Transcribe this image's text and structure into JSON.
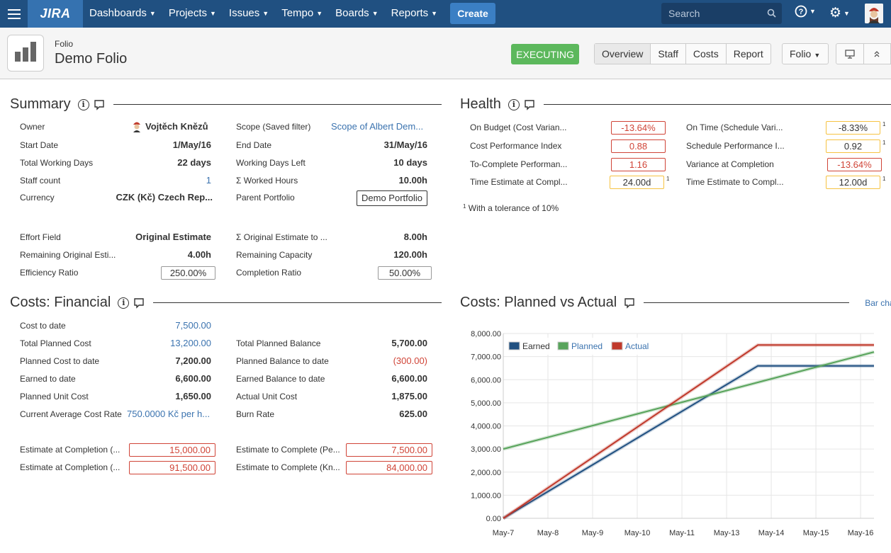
{
  "nav": {
    "logo": "JIRA",
    "menu": [
      "Dashboards",
      "Projects",
      "Issues",
      "Tempo",
      "Boards",
      "Reports"
    ],
    "create_label": "Create",
    "search_placeholder": "Search"
  },
  "header": {
    "breadcrumb": "Folio",
    "title": "Demo Folio",
    "status": "EXECUTING",
    "tabs": [
      "Overview",
      "Staff",
      "Costs",
      "Report"
    ],
    "folio_dropdown": "Folio"
  },
  "summary": {
    "title": "Summary",
    "left": [
      {
        "label": "Owner",
        "value": "Vojtěch Knězů"
      },
      {
        "label": "Start Date",
        "value": "1/May/16"
      },
      {
        "label": "Total Working Days",
        "value": "22 days"
      },
      {
        "label": "Staff count",
        "value": "1"
      },
      {
        "label": "Currency",
        "value": "CZK (Kč) Czech Rep..."
      },
      {
        "label": "Effort Field",
        "value": "Original Estimate"
      },
      {
        "label": "Remaining Original Esti...",
        "value": "4.00h"
      },
      {
        "label": "Efficiency Ratio",
        "value": "250.00%"
      }
    ],
    "right": [
      {
        "label": "Scope (Saved filter)",
        "value": "Scope of Albert Dem..."
      },
      {
        "label": "End Date",
        "value": "31/May/16"
      },
      {
        "label": "Working Days Left",
        "value": "10 days"
      },
      {
        "label": "Σ Worked Hours",
        "value": "10.00h"
      },
      {
        "label": "Parent Portfolio",
        "value": "Demo Portfolio"
      },
      {
        "label": "Σ Original Estimate to ...",
        "value": "8.00h"
      },
      {
        "label": "Remaining Capacity",
        "value": "120.00h"
      },
      {
        "label": "Completion Ratio",
        "value": "50.00%"
      }
    ]
  },
  "health": {
    "title": "Health",
    "left": [
      {
        "label": "On Budget (Cost Varian...",
        "value": "-13.64%"
      },
      {
        "label": "Cost Performance Index",
        "value": "0.88"
      },
      {
        "label": "To-Complete Performan...",
        "value": "1.16"
      },
      {
        "label": "Time Estimate at Compl...",
        "value": "24.00d"
      }
    ],
    "right": [
      {
        "label": "On Time (Schedule Vari...",
        "value": "-8.33%"
      },
      {
        "label": "Schedule Performance I...",
        "value": "0.92"
      },
      {
        "label": "Variance at Completion",
        "value": "-13.64%"
      },
      {
        "label": "Time Estimate to Compl...",
        "value": "12.00d"
      }
    ],
    "footnote_mark": "1",
    "footnote": "With a tolerance of 10%"
  },
  "costs_financial": {
    "title": "Costs: Financial",
    "left": [
      {
        "label": "Cost to date",
        "value": "7,500.00"
      },
      {
        "label": "Total Planned Cost",
        "value": "13,200.00"
      },
      {
        "label": "Planned Cost to date",
        "value": "7,200.00"
      },
      {
        "label": "Earned to date",
        "value": "6,600.00"
      },
      {
        "label": "Planned Unit Cost",
        "value": "1,650.00"
      },
      {
        "label": "Current Average Cost Rate",
        "value": "750.0000 Kč  per h..."
      },
      {
        "label": "Estimate at Completion (...",
        "value": "15,000.00"
      },
      {
        "label": "Estimate at Completion (...",
        "value": "91,500.00"
      }
    ],
    "right": [
      {
        "label": "Total Planned Balance",
        "value": "5,700.00"
      },
      {
        "label": "Planned Balance to date",
        "value": "(300.00)"
      },
      {
        "label": "Earned Balance to date",
        "value": "6,600.00"
      },
      {
        "label": "Actual Unit Cost",
        "value": "1,875.00"
      },
      {
        "label": "Burn Rate",
        "value": "625.00"
      },
      {
        "label": "Estimate to Complete (Pe...",
        "value": "7,500.00"
      },
      {
        "label": "Estimate to Complete (Kn...",
        "value": "84,000.00"
      }
    ]
  },
  "costs_chart": {
    "title": "Costs: Planned vs Actual",
    "toggle": "Bar chart"
  },
  "chart_data": {
    "type": "line",
    "title": "",
    "xlabel": "",
    "ylabel": "",
    "x": [
      "May-7",
      "May-8",
      "May-9",
      "May-10",
      "May-11",
      "May-13",
      "May-14",
      "May-15",
      "May-16"
    ],
    "yticks": [
      "0.00",
      "1,000.00",
      "2,000.00",
      "3,000.00",
      "4,000.00",
      "5,000.00",
      "6,000.00",
      "7,000.00",
      "8,000.00"
    ],
    "ylim": [
      0,
      8000
    ],
    "legend_position": "top-left",
    "grid": true,
    "series": [
      {
        "name": "Earned",
        "color": "#205081",
        "points": [
          [
            0,
            0
          ],
          [
            5.7,
            6600
          ],
          [
            8.3,
            6600
          ]
        ]
      },
      {
        "name": "Planned",
        "color": "#59a45c",
        "points": [
          [
            0,
            3000
          ],
          [
            8.3,
            7200
          ]
        ]
      },
      {
        "name": "Actual",
        "color": "#c0392b",
        "points": [
          [
            0,
            0
          ],
          [
            5.7,
            7500
          ],
          [
            8.3,
            7500
          ]
        ]
      }
    ]
  }
}
